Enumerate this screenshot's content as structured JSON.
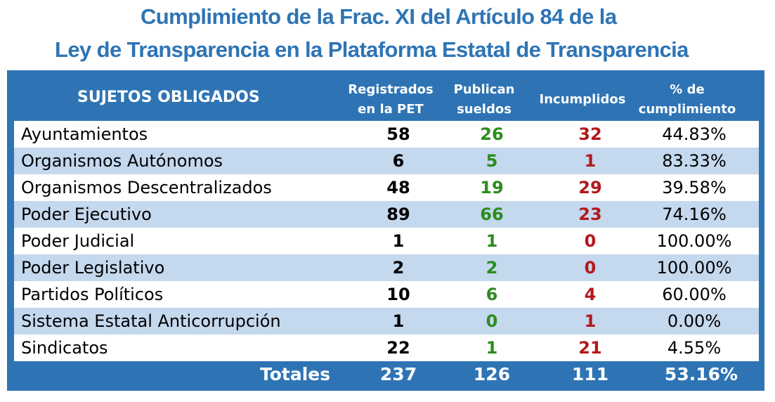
{
  "title": {
    "line1": "Cumplimiento de la Frac. XI del Artículo 84 de la",
    "line2": "Ley de Transparencia en la Plataforma Estatal de Transparencia"
  },
  "header": {
    "sujetos": "SUJETOS OBLIGADOS",
    "registrados": [
      "Registrados",
      "en la PET"
    ],
    "publican": [
      "Publican",
      "sueldos"
    ],
    "incumplidos": "Incumplidos",
    "cumplimiento": [
      "% de",
      "cumplimiento"
    ]
  },
  "rows": [
    {
      "name": "Ayuntamientos",
      "registrados": "58",
      "publican": "26",
      "incumplidos": "32",
      "cumplimiento": "44.83%"
    },
    {
      "name": "Organismos Autónomos",
      "registrados": "6",
      "publican": "5",
      "incumplidos": "1",
      "cumplimiento": "83.33%"
    },
    {
      "name": "Organismos Descentralizados",
      "registrados": "48",
      "publican": "19",
      "incumplidos": "29",
      "cumplimiento": "39.58%"
    },
    {
      "name": "Poder Ejecutivo",
      "registrados": "89",
      "publican": "66",
      "incumplidos": "23",
      "cumplimiento": "74.16%"
    },
    {
      "name": "Poder Judicial",
      "registrados": "1",
      "publican": "1",
      "incumplidos": "0",
      "cumplimiento": "100.00%"
    },
    {
      "name": "Poder Legislativo",
      "registrados": "2",
      "publican": "2",
      "incumplidos": "0",
      "cumplimiento": "100.00%"
    },
    {
      "name": "Partidos Políticos",
      "registrados": "10",
      "publican": "6",
      "incumplidos": "4",
      "cumplimiento": "60.00%"
    },
    {
      "name": "Sistema Estatal Anticorrupción",
      "registrados": "1",
      "publican": "0",
      "incumplidos": "1",
      "cumplimiento": "0.00%"
    },
    {
      "name": "Sindicatos",
      "registrados": "22",
      "publican": "1",
      "incumplidos": "21",
      "cumplimiento": "4.55%"
    }
  ],
  "totals": {
    "label": "Totales",
    "registrados": "237",
    "publican": "126",
    "incumplidos": "111",
    "cumplimiento": "53.16%"
  },
  "colors": {
    "title": "#2e74b5",
    "header_bg": "#2e74b5",
    "row_alt": "#c4d8ee",
    "publican": "#2c8c1e",
    "incumplidos": "#b2191c"
  }
}
